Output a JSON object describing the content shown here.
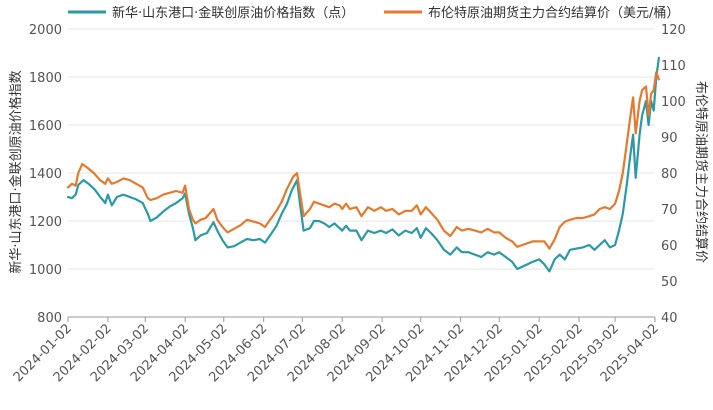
{
  "chart_data": {
    "type": "line",
    "title": "",
    "legend": {
      "position": "top"
    },
    "grid": true,
    "x_ticks": [
      "2024-01-02",
      "2024-02-02",
      "2024-03-02",
      "2024-04-02",
      "2024-05-02",
      "2024-06-02",
      "2024-07-02",
      "2024-08-02",
      "2024-09-02",
      "2024-10-02",
      "2024-11-02",
      "2024-12-02",
      "2025-01-02",
      "2025-02-02",
      "2025-03-02",
      "2025-04-02"
    ],
    "xlim": [
      "2024-01-02",
      "2025-04-02"
    ],
    "y_left": {
      "label": "新华·山东港口·金联创原油价格指数",
      "min": 800,
      "max": 2000,
      "ticks": [
        800,
        1000,
        1200,
        1400,
        1600,
        1800,
        2000
      ]
    },
    "y_right": {
      "label": "布伦特原油期货主力合约结算价",
      "min": 40,
      "max": 120,
      "ticks": [
        40,
        50,
        60,
        70,
        80,
        90,
        100,
        110,
        120
      ]
    },
    "series": [
      {
        "name": "新华·山东港口·金联创原油价格指数（点）",
        "axis": "left",
        "color": "#2a9aa8",
        "points": [
          [
            "2024-01-02",
            1300
          ],
          [
            "2024-01-05",
            1295
          ],
          [
            "2024-01-08",
            1310
          ],
          [
            "2024-01-10",
            1350
          ],
          [
            "2024-01-14",
            1370
          ],
          [
            "2024-01-18",
            1355
          ],
          [
            "2024-01-23",
            1330
          ],
          [
            "2024-01-27",
            1300
          ],
          [
            "2024-01-31",
            1275
          ],
          [
            "2024-02-02",
            1310
          ],
          [
            "2024-02-05",
            1265
          ],
          [
            "2024-02-09",
            1300
          ],
          [
            "2024-02-14",
            1310
          ],
          [
            "2024-02-19",
            1300
          ],
          [
            "2024-02-24",
            1290
          ],
          [
            "2024-02-29",
            1275
          ],
          [
            "2024-03-04",
            1230
          ],
          [
            "2024-03-06",
            1200
          ],
          [
            "2024-03-11",
            1215
          ],
          [
            "2024-03-16",
            1240
          ],
          [
            "2024-03-21",
            1260
          ],
          [
            "2024-03-26",
            1275
          ],
          [
            "2024-03-31",
            1295
          ],
          [
            "2024-04-02",
            1315
          ],
          [
            "2024-04-05",
            1230
          ],
          [
            "2024-04-08",
            1170
          ],
          [
            "2024-04-10",
            1120
          ],
          [
            "2024-04-14",
            1140
          ],
          [
            "2024-04-19",
            1150
          ],
          [
            "2024-04-24",
            1195
          ],
          [
            "2024-04-27",
            1160
          ],
          [
            "2024-05-01",
            1120
          ],
          [
            "2024-05-05",
            1090
          ],
          [
            "2024-05-10",
            1095
          ],
          [
            "2024-05-15",
            1110
          ],
          [
            "2024-05-20",
            1125
          ],
          [
            "2024-05-25",
            1120
          ],
          [
            "2024-05-30",
            1125
          ],
          [
            "2024-06-03",
            1110
          ],
          [
            "2024-06-07",
            1140
          ],
          [
            "2024-06-12",
            1180
          ],
          [
            "2024-06-16",
            1230
          ],
          [
            "2024-06-20",
            1270
          ],
          [
            "2024-06-24",
            1330
          ],
          [
            "2024-06-28",
            1370
          ],
          [
            "2024-06-30",
            1280
          ],
          [
            "2024-07-03",
            1160
          ],
          [
            "2024-07-08",
            1170
          ],
          [
            "2024-07-11",
            1200
          ],
          [
            "2024-07-15",
            1200
          ],
          [
            "2024-07-19",
            1190
          ],
          [
            "2024-07-23",
            1175
          ],
          [
            "2024-07-27",
            1190
          ],
          [
            "2024-07-31",
            1170
          ],
          [
            "2024-08-02",
            1160
          ],
          [
            "2024-08-05",
            1180
          ],
          [
            "2024-08-08",
            1160
          ],
          [
            "2024-08-13",
            1160
          ],
          [
            "2024-08-17",
            1120
          ],
          [
            "2024-08-22",
            1160
          ],
          [
            "2024-08-27",
            1150
          ],
          [
            "2024-09-01",
            1160
          ],
          [
            "2024-09-05",
            1150
          ],
          [
            "2024-09-10",
            1165
          ],
          [
            "2024-09-15",
            1140
          ],
          [
            "2024-09-20",
            1160
          ],
          [
            "2024-09-25",
            1150
          ],
          [
            "2024-09-29",
            1170
          ],
          [
            "2024-10-02",
            1130
          ],
          [
            "2024-10-06",
            1170
          ],
          [
            "2024-10-10",
            1150
          ],
          [
            "2024-10-15",
            1120
          ],
          [
            "2024-10-20",
            1080
          ],
          [
            "2024-10-25",
            1060
          ],
          [
            "2024-10-30",
            1090
          ],
          [
            "2024-11-03",
            1070
          ],
          [
            "2024-11-08",
            1070
          ],
          [
            "2024-11-13",
            1060
          ],
          [
            "2024-11-18",
            1050
          ],
          [
            "2024-11-23",
            1070
          ],
          [
            "2024-11-28",
            1060
          ],
          [
            "2024-12-02",
            1070
          ],
          [
            "2024-12-07",
            1050
          ],
          [
            "2024-12-12",
            1030
          ],
          [
            "2024-12-16",
            1000
          ],
          [
            "2024-12-20",
            1010
          ],
          [
            "2024-12-24",
            1020
          ],
          [
            "2024-12-28",
            1030
          ],
          [
            "2025-01-02",
            1040
          ],
          [
            "2025-01-06",
            1020
          ],
          [
            "2025-01-10",
            990
          ],
          [
            "2025-01-14",
            1040
          ],
          [
            "2025-01-18",
            1060
          ],
          [
            "2025-01-22",
            1040
          ],
          [
            "2025-01-26",
            1080
          ],
          [
            "2025-01-31",
            1085
          ],
          [
            "2025-02-05",
            1090
          ],
          [
            "2025-02-10",
            1100
          ],
          [
            "2025-02-14",
            1080
          ],
          [
            "2025-02-18",
            1100
          ],
          [
            "2025-02-22",
            1120
          ],
          [
            "2025-02-26",
            1090
          ],
          [
            "2025-03-02",
            1100
          ],
          [
            "2025-03-05",
            1160
          ],
          [
            "2025-03-08",
            1230
          ],
          [
            "2025-03-11",
            1350
          ],
          [
            "2025-03-14",
            1480
          ],
          [
            "2025-03-16",
            1560
          ],
          [
            "2025-03-18",
            1380
          ],
          [
            "2025-03-21",
            1560
          ],
          [
            "2025-03-23",
            1640
          ],
          [
            "2025-03-26",
            1700
          ],
          [
            "2025-03-28",
            1600
          ],
          [
            "2025-03-30",
            1700
          ],
          [
            "2025-04-01",
            1660
          ],
          [
            "2025-04-03",
            1800
          ],
          [
            "2025-04-05",
            1880
          ]
        ]
      },
      {
        "name": "布伦特原油期货主力合约结算价（美元/桶）",
        "axis": "right",
        "color": "#e8782b",
        "points": [
          [
            "2024-01-02",
            76
          ],
          [
            "2024-01-05",
            77
          ],
          [
            "2024-01-08",
            76.5
          ],
          [
            "2024-01-10",
            80
          ],
          [
            "2024-01-13",
            82.5
          ],
          [
            "2024-01-17",
            81.5
          ],
          [
            "2024-01-22",
            80
          ],
          [
            "2024-01-27",
            78
          ],
          [
            "2024-01-31",
            77
          ],
          [
            "2024-02-02",
            78.5
          ],
          [
            "2024-02-05",
            77
          ],
          [
            "2024-02-09",
            77.5
          ],
          [
            "2024-02-14",
            78.5
          ],
          [
            "2024-02-19",
            78
          ],
          [
            "2024-02-24",
            77
          ],
          [
            "2024-02-29",
            76
          ],
          [
            "2024-03-04",
            73
          ],
          [
            "2024-03-06",
            72.5
          ],
          [
            "2024-03-11",
            73
          ],
          [
            "2024-03-16",
            74
          ],
          [
            "2024-03-21",
            74.5
          ],
          [
            "2024-03-26",
            75
          ],
          [
            "2024-03-31",
            74.5
          ],
          [
            "2024-04-02",
            76.5
          ],
          [
            "2024-04-05",
            70
          ],
          [
            "2024-04-08",
            67
          ],
          [
            "2024-04-10",
            66
          ],
          [
            "2024-04-14",
            67
          ],
          [
            "2024-04-18",
            67.5
          ],
          [
            "2024-04-24",
            70
          ],
          [
            "2024-04-27",
            67
          ],
          [
            "2024-05-01",
            65
          ],
          [
            "2024-05-05",
            63.5
          ],
          [
            "2024-05-10",
            64.5
          ],
          [
            "2024-05-15",
            65.5
          ],
          [
            "2024-05-20",
            67
          ],
          [
            "2024-05-25",
            66.5
          ],
          [
            "2024-05-30",
            66
          ],
          [
            "2024-06-03",
            65
          ],
          [
            "2024-06-07",
            67
          ],
          [
            "2024-06-12",
            69.5
          ],
          [
            "2024-06-16",
            72
          ],
          [
            "2024-06-20",
            75.5
          ],
          [
            "2024-06-25",
            79
          ],
          [
            "2024-06-28",
            80
          ],
          [
            "2024-06-30",
            75
          ],
          [
            "2024-07-03",
            68
          ],
          [
            "2024-07-08",
            70
          ],
          [
            "2024-07-11",
            72
          ],
          [
            "2024-07-15",
            71.5
          ],
          [
            "2024-07-19",
            71
          ],
          [
            "2024-07-23",
            70.5
          ],
          [
            "2024-07-27",
            71.5
          ],
          [
            "2024-07-31",
            71
          ],
          [
            "2024-08-02",
            70
          ],
          [
            "2024-08-05",
            71.5
          ],
          [
            "2024-08-08",
            70
          ],
          [
            "2024-08-13",
            70.5
          ],
          [
            "2024-08-17",
            68
          ],
          [
            "2024-08-22",
            70.5
          ],
          [
            "2024-08-27",
            69.5
          ],
          [
            "2024-09-01",
            70.5
          ],
          [
            "2024-09-05",
            69.5
          ],
          [
            "2024-09-10",
            70
          ],
          [
            "2024-09-15",
            68.5
          ],
          [
            "2024-09-20",
            69.5
          ],
          [
            "2024-09-25",
            69.5
          ],
          [
            "2024-09-29",
            71
          ],
          [
            "2024-10-02",
            68.5
          ],
          [
            "2024-10-06",
            70.5
          ],
          [
            "2024-10-10",
            69
          ],
          [
            "2024-10-15",
            67
          ],
          [
            "2024-10-20",
            64
          ],
          [
            "2024-10-25",
            62.5
          ],
          [
            "2024-10-30",
            65
          ],
          [
            "2024-11-03",
            64
          ],
          [
            "2024-11-08",
            64.5
          ],
          [
            "2024-11-13",
            64
          ],
          [
            "2024-11-18",
            63.5
          ],
          [
            "2024-11-23",
            64.5
          ],
          [
            "2024-11-28",
            63.5
          ],
          [
            "2024-12-02",
            63.5
          ],
          [
            "2024-12-07",
            62
          ],
          [
            "2024-12-12",
            61
          ],
          [
            "2024-12-16",
            59.5
          ],
          [
            "2024-12-20",
            60
          ],
          [
            "2024-12-24",
            60.5
          ],
          [
            "2024-12-28",
            61
          ],
          [
            "2025-01-02",
            61
          ],
          [
            "2025-01-06",
            61
          ],
          [
            "2025-01-10",
            59
          ],
          [
            "2025-01-14",
            61.5
          ],
          [
            "2025-01-18",
            65
          ],
          [
            "2025-01-22",
            66.5
          ],
          [
            "2025-01-26",
            67
          ],
          [
            "2025-01-31",
            67.5
          ],
          [
            "2025-02-05",
            67.5
          ],
          [
            "2025-02-10",
            68
          ],
          [
            "2025-02-14",
            68.5
          ],
          [
            "2025-02-18",
            70
          ],
          [
            "2025-02-22",
            70.5
          ],
          [
            "2025-02-26",
            70
          ],
          [
            "2025-03-02",
            71.5
          ],
          [
            "2025-03-05",
            75
          ],
          [
            "2025-03-08",
            80
          ],
          [
            "2025-03-11",
            88
          ],
          [
            "2025-03-14",
            96
          ],
          [
            "2025-03-16",
            101
          ],
          [
            "2025-03-18",
            91
          ],
          [
            "2025-03-21",
            100
          ],
          [
            "2025-03-23",
            103
          ],
          [
            "2025-03-26",
            104
          ],
          [
            "2025-03-28",
            96
          ],
          [
            "2025-03-30",
            102
          ],
          [
            "2025-04-01",
            103
          ],
          [
            "2025-04-03",
            108
          ],
          [
            "2025-04-05",
            106
          ]
        ]
      }
    ]
  }
}
